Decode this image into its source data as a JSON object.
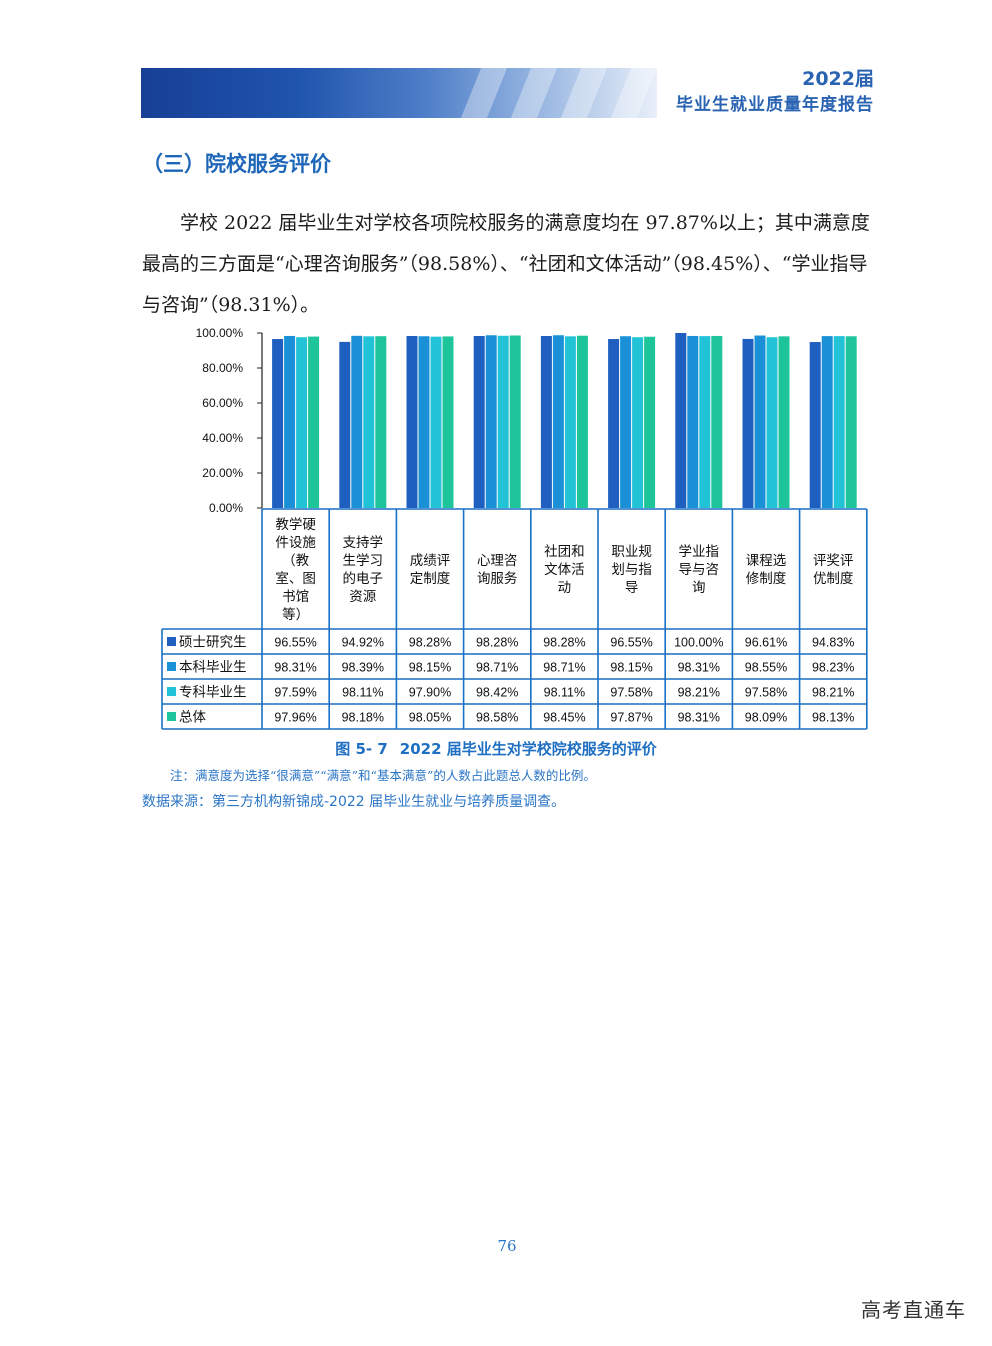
{
  "header": {
    "year": "2022届",
    "title": "毕业生就业质量年度报告"
  },
  "section": {
    "heading": "（三）院校服务评价"
  },
  "body_text": "学校 2022 届毕业生对学校各项院校服务的满意度均在 97.87%以上；其中满意度最高的三方面是“心理咨询服务”（98.58%）、“社团和文体活动”（98.45%）、“学业指导与咨询”（98.31%）。",
  "figure": {
    "caption_number": "图 5- 7",
    "caption_title": "2022 届毕业生对学校院校服务的评价",
    "note": "注：满意度为选择“很满意”“满意”和“基本满意”的人数占此题总人数的比例。",
    "source": "数据来源：第三方机构新锦成-2022 届毕业生就业与培养质量调查。"
  },
  "chart_data": {
    "type": "bar",
    "ylim": [
      0,
      100
    ],
    "y_ticks": [
      "0.00%",
      "20.00%",
      "40.00%",
      "60.00%",
      "80.00%",
      "100.00%"
    ],
    "categories": [
      [
        "教学硬",
        "件设施",
        "（教",
        "室、图",
        "书馆",
        "等）"
      ],
      [
        "支持学",
        "生学习",
        "的电子",
        "资源"
      ],
      [
        "成绩评",
        "定制度"
      ],
      [
        "心理咨",
        "询服务"
      ],
      [
        "社团和",
        "文体活",
        "动"
      ],
      [
        "职业规",
        "划与指",
        "导"
      ],
      [
        "学业指",
        "导与咨",
        "询"
      ],
      [
        "课程选",
        "修制度"
      ],
      [
        "评奖评",
        "优制度"
      ]
    ],
    "series": [
      {
        "name": "硕士研究生",
        "color": "#1f5fbf",
        "values": [
          96.55,
          94.92,
          98.28,
          98.28,
          98.28,
          96.55,
          100.0,
          96.61,
          94.83
        ],
        "labels": [
          "96.55%",
          "94.92%",
          "98.28%",
          "98.28%",
          "98.28%",
          "96.55%",
          "100.00%",
          "96.61%",
          "94.83%"
        ]
      },
      {
        "name": "本科毕业生",
        "color": "#1a91d6",
        "values": [
          98.31,
          98.39,
          98.15,
          98.71,
          98.71,
          98.15,
          98.31,
          98.55,
          98.23
        ],
        "labels": [
          "98.31%",
          "98.39%",
          "98.15%",
          "98.71%",
          "98.71%",
          "98.15%",
          "98.31%",
          "98.55%",
          "98.23%"
        ]
      },
      {
        "name": "专科毕业生",
        "color": "#22c3d6",
        "values": [
          97.59,
          98.11,
          97.9,
          98.42,
          98.11,
          97.58,
          98.21,
          97.58,
          98.21
        ],
        "labels": [
          "97.59%",
          "98.11%",
          "97.90%",
          "98.42%",
          "98.11%",
          "97.58%",
          "98.21%",
          "97.58%",
          "98.21%"
        ]
      },
      {
        "name": "总体",
        "color": "#1fc59a",
        "values": [
          97.96,
          98.18,
          98.05,
          98.58,
          98.45,
          97.87,
          98.31,
          98.09,
          98.13
        ],
        "labels": [
          "97.96%",
          "98.18%",
          "98.05%",
          "98.58%",
          "98.45%",
          "97.87%",
          "98.31%",
          "98.09%",
          "98.13%"
        ]
      }
    ]
  },
  "page": {
    "number": "76"
  },
  "watermark": "高考直通车"
}
